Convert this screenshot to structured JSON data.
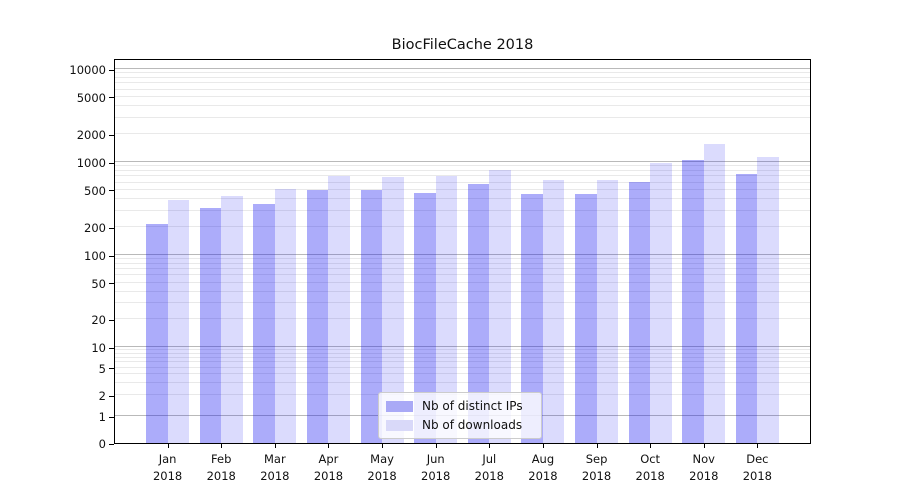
{
  "chart_data": {
    "type": "bar",
    "title": "BiocFileCache 2018",
    "categories": [
      "Jan",
      "Feb",
      "Mar",
      "Apr",
      "May",
      "Jun",
      "Jul",
      "Aug",
      "Sep",
      "Oct",
      "Nov",
      "Dec"
    ],
    "x_year_label": "2018",
    "series": [
      {
        "name": "Nb of distinct IPs",
        "color": "#a9a9f6",
        "overlay_color": "rgba(16,16,240,0.35)",
        "values": [
          215,
          320,
          350,
          505,
          505,
          470,
          580,
          455,
          455,
          615,
          1060,
          750
        ]
      },
      {
        "name": "Nb of downloads",
        "color": "#d9d9f9",
        "overlay_color": "rgba(16,16,240,0.15)",
        "values": [
          390,
          430,
          510,
          710,
          690,
          715,
          815,
          645,
          645,
          970,
          1570,
          1130
        ]
      }
    ],
    "yscale": "symlog",
    "yticks": [
      0,
      1,
      2,
      5,
      10,
      20,
      50,
      100,
      200,
      500,
      1000,
      2000,
      5000,
      10000
    ],
    "ylim": [
      0,
      13000
    ],
    "grid": "horizontal major+minor",
    "legend_position": "lower center",
    "colors": {
      "major_grid": "#b9b9b9",
      "minor_grid": "#e9e9e9",
      "spine": "#000000",
      "text": "#111111",
      "background": "#ffffff"
    }
  }
}
